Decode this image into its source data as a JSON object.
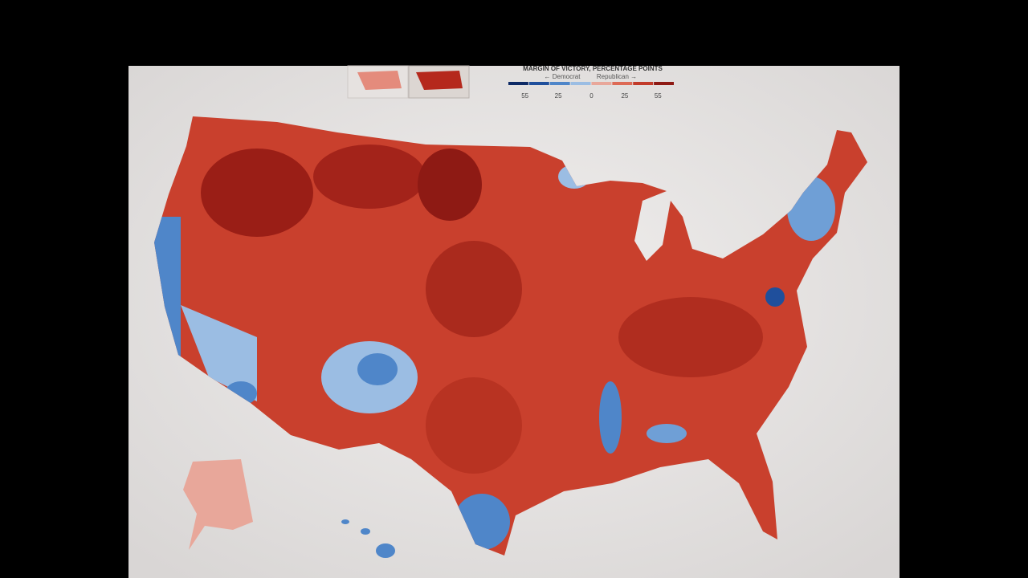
{
  "legend": {
    "title": "MARGIN OF VICTORY, PERCENTAGE POINTS",
    "left_label": "← Democrat",
    "right_label": "Republican →",
    "ticks": [
      55,
      25,
      0,
      25,
      55
    ],
    "colors": [
      "#0e2a66",
      "#1f4f9c",
      "#4f86c9",
      "#9bbde3",
      "#e8a79a",
      "#dd6a55",
      "#c23b2a",
      "#8e1a14"
    ]
  }
}
